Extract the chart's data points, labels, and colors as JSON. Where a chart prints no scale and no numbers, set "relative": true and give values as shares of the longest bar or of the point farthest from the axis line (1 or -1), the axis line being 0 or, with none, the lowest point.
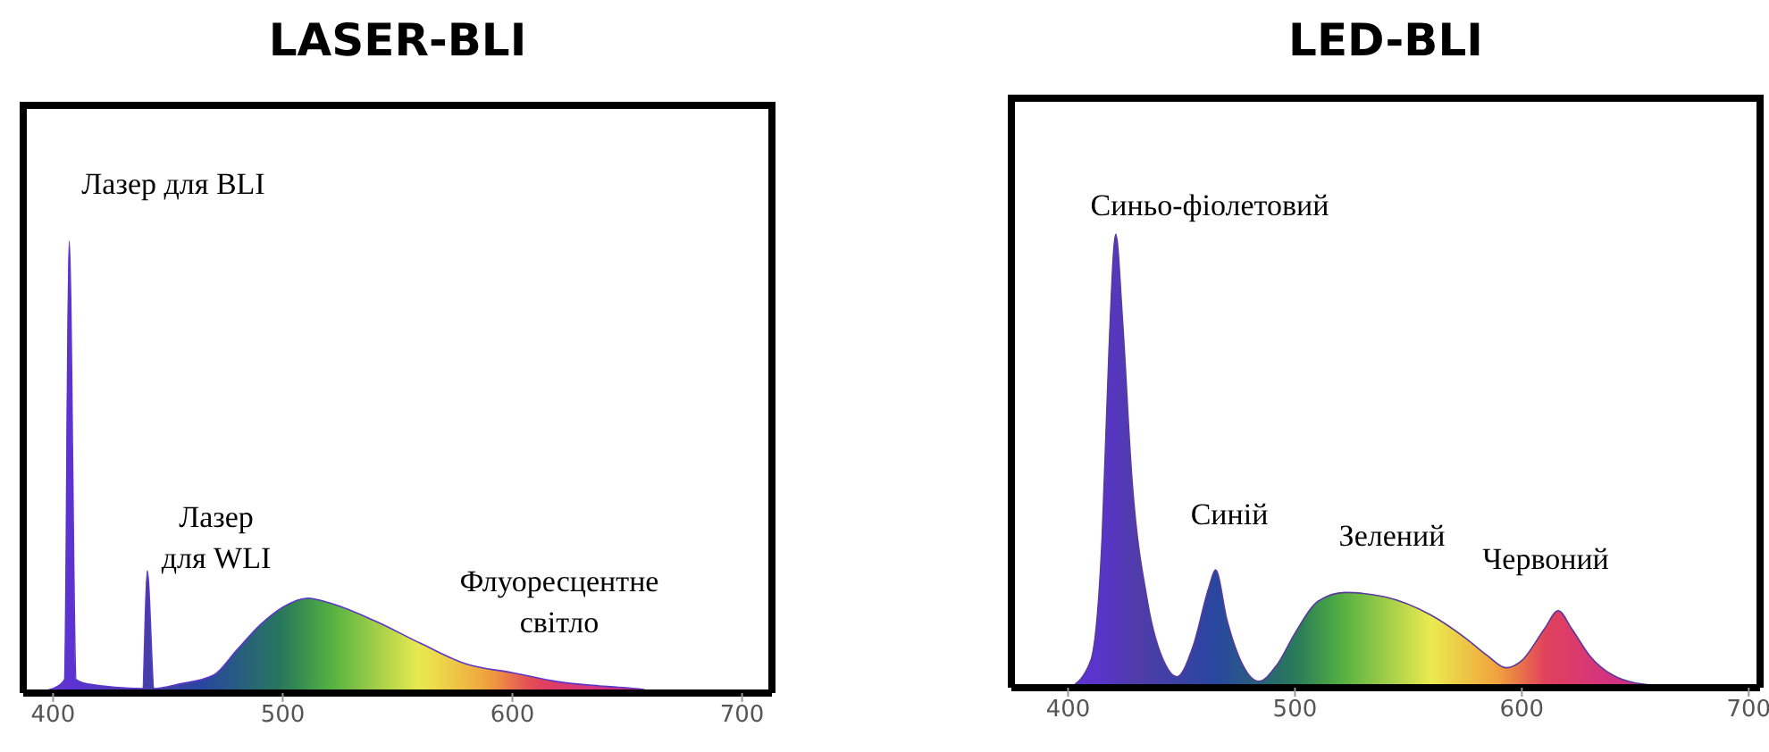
{
  "chart_data": [
    {
      "type": "area",
      "title": "LASER-BLI",
      "relative": true,
      "xlim": [
        387,
        713
      ],
      "xticks": [
        400,
        500,
        600,
        700
      ],
      "series": [
        {
          "color": "#5b36c8",
          "x": [
            390,
            400,
            405,
            407,
            410,
            415,
            439,
            441,
            444,
            455,
            470,
            480,
            490,
            500,
            511,
            520,
            540,
            560,
            580,
            600,
            620,
            640,
            657,
            660
          ],
          "values": [
            0,
            0.01,
            0.03,
            1,
            0.03,
            0.02,
            0.01,
            0.27,
            0.01,
            0.02,
            0.04,
            0.095,
            0.15,
            0.19,
            0.21,
            0.2,
            0.16,
            0.11,
            0.064,
            0.045,
            0.025,
            0.015,
            0.008,
            0
          ]
        }
      ],
      "annotations": [
        "Лазер для BLI",
        "Лазер\nдля WLI",
        "Флуоресцентне\nсвітло"
      ]
    },
    {
      "type": "area",
      "title": "LED-BLI",
      "relative": true,
      "xlim": [
        375,
        705
      ],
      "xticks": [
        400,
        500,
        600,
        700
      ],
      "series": [
        {
          "color": "#5a3a9c",
          "x": [
            401,
            410,
            415,
            418,
            421,
            424,
            428,
            435,
            443,
            448,
            455,
            462,
            465,
            470,
            477,
            484,
            492,
            500,
            510,
            522,
            540,
            560,
            575,
            585,
            593,
            600,
            610,
            616,
            622,
            630,
            640,
            655,
            690
          ],
          "values": [
            0,
            0.06,
            0.33,
            0.74,
            1,
            0.81,
            0.47,
            0.19,
            0.05,
            0.024,
            0.09,
            0.22,
            0.26,
            0.15,
            0.05,
            0.014,
            0.05,
            0.12,
            0.19,
            0.21,
            0.2,
            0.16,
            0.11,
            0.07,
            0.044,
            0.06,
            0.13,
            0.17,
            0.13,
            0.07,
            0.028,
            0.007,
            0
          ]
        }
      ],
      "annotations": [
        "Синьо-фіолетовий",
        "Синій",
        "Зелений",
        "Червоний"
      ]
    }
  ]
}
